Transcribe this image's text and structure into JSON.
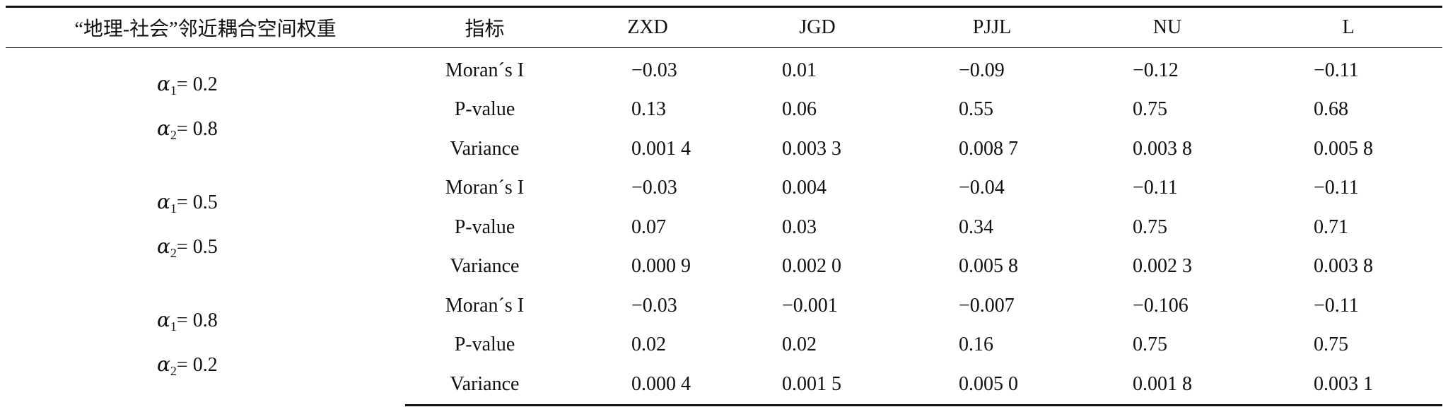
{
  "table": {
    "headers": [
      "“地理-社会”邻近耦合空间权重",
      "指标",
      "ZXD",
      "JGD",
      "PJJL",
      "NU",
      "L"
    ],
    "groups": [
      {
        "alpha1_symbol": "α",
        "alpha1_sub": "1",
        "alpha1_value": "= 0.2",
        "alpha2_symbol": "α",
        "alpha2_sub": "2",
        "alpha2_value": "= 0.8",
        "rows": [
          {
            "indicator": "Moran´s I",
            "values": [
              "−0.03",
              "0.01",
              "−0.09",
              "−0.12",
              "−0.11"
            ]
          },
          {
            "indicator": "P-value",
            "values": [
              "0.13",
              "0.06",
              "0.55",
              "0.75",
              "0.68"
            ]
          },
          {
            "indicator": "Variance",
            "values": [
              "0.001 4",
              "0.003 3",
              "0.008 7",
              "0.003 8",
              "0.005 8"
            ]
          }
        ]
      },
      {
        "alpha1_symbol": "α",
        "alpha1_sub": "1",
        "alpha1_value": "= 0.5",
        "alpha2_symbol": "α",
        "alpha2_sub": "2",
        "alpha2_value": "= 0.5",
        "rows": [
          {
            "indicator": "Moran´s I",
            "values": [
              "−0.03",
              "0.004",
              "−0.04",
              "−0.11",
              "−0.11"
            ]
          },
          {
            "indicator": "P-value",
            "values": [
              "0.07",
              "0.03",
              "0.34",
              "0.75",
              "0.71"
            ]
          },
          {
            "indicator": "Variance",
            "values": [
              "0.000 9",
              "0.002 0",
              "0.005 8",
              "0.002 3",
              "0.003 8"
            ]
          }
        ]
      },
      {
        "alpha1_symbol": "α",
        "alpha1_sub": "1",
        "alpha1_value": "= 0.8",
        "alpha2_symbol": "α",
        "alpha2_sub": "2",
        "alpha2_value": "= 0.2",
        "rows": [
          {
            "indicator": "Moran´s I",
            "values": [
              "−0.03",
              "−0.001",
              "−0.007",
              "−0.106",
              "−0.11"
            ]
          },
          {
            "indicator": "P-value",
            "values": [
              "0.02",
              "0.02",
              "0.16",
              "0.75",
              "0.75"
            ]
          },
          {
            "indicator": "Variance",
            "values": [
              "0.000 4",
              "0.001 5",
              "0.005 0",
              "0.001 8",
              "0.003 1"
            ]
          }
        ]
      }
    ]
  }
}
